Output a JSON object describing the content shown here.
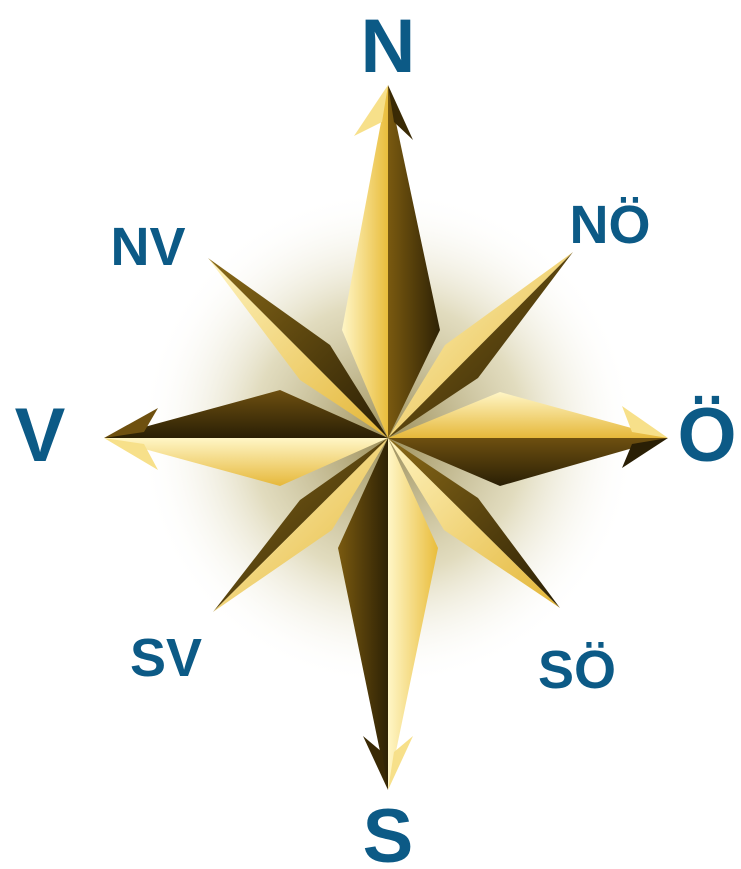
{
  "labels": {
    "north": "N",
    "south": "S",
    "west": "V",
    "east": "Ö",
    "northwest": "NV",
    "northeast": "NÖ",
    "southwest": "SV",
    "southeast": "SÖ"
  },
  "colors": {
    "label": "#0c5a86",
    "gold_light": "#fff2b0",
    "gold_mid": "#e8c24a",
    "gold_dark": "#3a2a05",
    "halo": "#8a7a3c"
  },
  "icons": {
    "rose": "compass-rose-icon"
  }
}
